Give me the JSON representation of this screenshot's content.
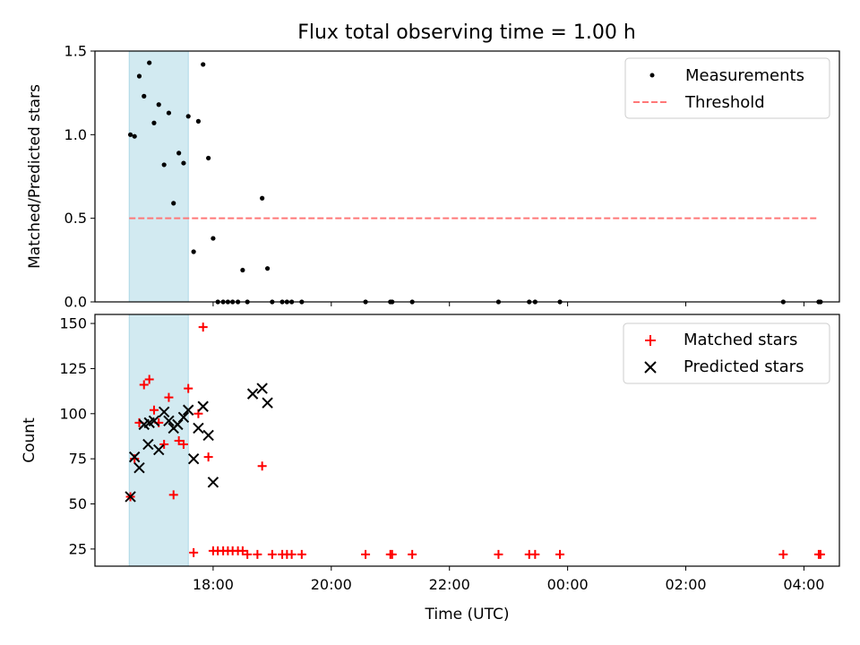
{
  "title": "Flux total observing time = 1.00 h",
  "colors": {
    "measurement": "#000000",
    "threshold": "#ff7777",
    "matched": "#ff0000",
    "predicted": "#000000",
    "window": "#add8e6"
  },
  "x_axis": {
    "label": "Time (UTC)",
    "range_hours": [
      16.0,
      28.6
    ],
    "tick_hours": [
      18,
      20,
      22,
      24,
      26,
      28
    ],
    "tick_labels": [
      "18:00",
      "20:00",
      "22:00",
      "00:00",
      "02:00",
      "04:00"
    ]
  },
  "observing_window_hours": [
    16.58,
    17.58
  ],
  "chart_data": [
    {
      "type": "scatter",
      "panel": "top",
      "ylabel": "Matched/Predicted stars",
      "ylim": [
        0,
        1.5
      ],
      "yticks": [
        0.0,
        0.5,
        1.0,
        1.5
      ],
      "ytick_labels": [
        "0.0",
        "0.5",
        "1.0",
        "1.5"
      ],
      "legend": {
        "position": "upper right",
        "entries": [
          "Measurements",
          "Threshold"
        ]
      },
      "threshold": {
        "name": "Threshold",
        "y": 0.5,
        "x_range": [
          16.58,
          28.25
        ]
      },
      "series": [
        {
          "name": "Measurements",
          "points": [
            [
              16.6,
              1.0
            ],
            [
              16.67,
              0.99
            ],
            [
              16.75,
              1.35
            ],
            [
              16.83,
              1.23
            ],
            [
              16.92,
              1.43
            ],
            [
              17.0,
              1.07
            ],
            [
              17.08,
              1.18
            ],
            [
              17.17,
              0.82
            ],
            [
              17.25,
              1.13
            ],
            [
              17.33,
              0.59
            ],
            [
              17.42,
              0.89
            ],
            [
              17.5,
              0.83
            ],
            [
              17.58,
              1.11
            ],
            [
              17.67,
              0.3
            ],
            [
              17.75,
              1.08
            ],
            [
              17.83,
              1.42
            ],
            [
              17.92,
              0.86
            ],
            [
              18.0,
              0.38
            ],
            [
              18.08,
              0.0
            ],
            [
              18.17,
              0.0
            ],
            [
              18.25,
              0.0
            ],
            [
              18.33,
              0.0
            ],
            [
              18.42,
              0.0
            ],
            [
              18.5,
              0.19
            ],
            [
              18.58,
              0.0
            ],
            [
              18.83,
              0.62
            ],
            [
              18.92,
              0.2
            ],
            [
              19.0,
              0.0
            ],
            [
              19.17,
              0.0
            ],
            [
              19.25,
              0.0
            ],
            [
              19.33,
              0.0
            ],
            [
              19.5,
              0.0
            ],
            [
              20.58,
              0.0
            ],
            [
              21.0,
              0.0
            ],
            [
              21.03,
              0.0
            ],
            [
              21.37,
              0.0
            ],
            [
              22.83,
              0.0
            ],
            [
              23.35,
              0.0
            ],
            [
              23.45,
              0.0
            ],
            [
              23.87,
              0.0
            ],
            [
              27.65,
              0.0
            ],
            [
              28.25,
              0.0
            ],
            [
              28.28,
              0.0
            ]
          ]
        }
      ]
    },
    {
      "type": "scatter",
      "panel": "bottom",
      "ylabel": "Count",
      "ylim": [
        15.5,
        155
      ],
      "yticks": [
        25,
        50,
        75,
        100,
        125,
        150
      ],
      "ytick_labels": [
        "25",
        "50",
        "75",
        "100",
        "125",
        "150"
      ],
      "legend": {
        "position": "upper right",
        "entries": [
          "Matched stars",
          "Predicted stars"
        ]
      },
      "series": [
        {
          "name": "Matched stars",
          "marker": "plus",
          "points": [
            [
              16.6,
              54
            ],
            [
              16.67,
              75
            ],
            [
              16.75,
              95
            ],
            [
              16.83,
              116
            ],
            [
              16.92,
              119
            ],
            [
              17.0,
              102
            ],
            [
              17.08,
              95
            ],
            [
              17.17,
              83
            ],
            [
              17.25,
              109
            ],
            [
              17.33,
              55
            ],
            [
              17.42,
              85
            ],
            [
              17.5,
              83
            ],
            [
              17.58,
              114
            ],
            [
              17.67,
              23
            ],
            [
              17.75,
              100
            ],
            [
              17.83,
              148
            ],
            [
              17.92,
              76
            ],
            [
              18.0,
              24
            ],
            [
              18.08,
              24
            ],
            [
              18.17,
              24
            ],
            [
              18.25,
              24
            ],
            [
              18.33,
              24
            ],
            [
              18.42,
              24
            ],
            [
              18.5,
              24
            ],
            [
              18.58,
              22
            ],
            [
              18.83,
              71
            ],
            [
              18.75,
              22
            ],
            [
              19.0,
              22
            ],
            [
              19.17,
              22
            ],
            [
              19.25,
              22
            ],
            [
              19.33,
              22
            ],
            [
              19.5,
              22
            ],
            [
              20.58,
              22
            ],
            [
              21.0,
              22
            ],
            [
              21.03,
              22
            ],
            [
              21.37,
              22
            ],
            [
              22.83,
              22
            ],
            [
              23.35,
              22
            ],
            [
              23.45,
              22
            ],
            [
              23.87,
              22
            ],
            [
              27.65,
              22
            ],
            [
              28.25,
              22
            ],
            [
              28.28,
              22
            ]
          ]
        },
        {
          "name": "Predicted stars",
          "marker": "x",
          "points": [
            [
              16.6,
              54
            ],
            [
              16.67,
              76
            ],
            [
              16.75,
              70
            ],
            [
              16.83,
              94
            ],
            [
              16.9,
              83
            ],
            [
              16.92,
              95
            ],
            [
              17.0,
              96
            ],
            [
              17.08,
              80
            ],
            [
              17.17,
              101
            ],
            [
              17.25,
              96
            ],
            [
              17.33,
              92
            ],
            [
              17.4,
              94
            ],
            [
              17.5,
              98
            ],
            [
              17.58,
              102
            ],
            [
              17.67,
              75
            ],
            [
              17.75,
              92
            ],
            [
              17.83,
              104
            ],
            [
              17.92,
              88
            ],
            [
              18.0,
              62
            ],
            [
              18.67,
              111
            ],
            [
              18.83,
              114
            ],
            [
              18.92,
              106
            ]
          ]
        }
      ]
    }
  ]
}
